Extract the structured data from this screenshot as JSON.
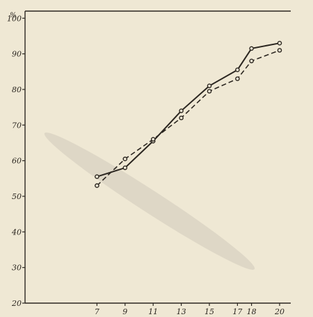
{
  "chart_data": {
    "type": "line",
    "title": "",
    "xlabel": "",
    "ylabel": "%",
    "x": [
      7,
      9,
      11,
      13,
      15,
      17,
      18,
      20
    ],
    "x_tick_labels": [
      "7",
      "9",
      "11",
      "13",
      "15",
      "17",
      "18",
      "20"
    ],
    "y_tick_labels": [
      "20",
      "30",
      "40",
      "50",
      "60",
      "70",
      "80",
      "90",
      "100"
    ],
    "xlim": [
      5.3,
      21
    ],
    "ylim": [
      20,
      102
    ],
    "grid": false,
    "legend": "none",
    "series": [
      {
        "style": "solid",
        "values": [
          55.5,
          58,
          65.5,
          74,
          81,
          85.5,
          91.5,
          93
        ]
      },
      {
        "style": "dashed",
        "values": [
          53,
          60.5,
          66,
          72,
          79.5,
          83,
          88,
          91
        ]
      }
    ],
    "colors": {
      "background": "#efe8d4",
      "ink": "#2b2620"
    }
  }
}
